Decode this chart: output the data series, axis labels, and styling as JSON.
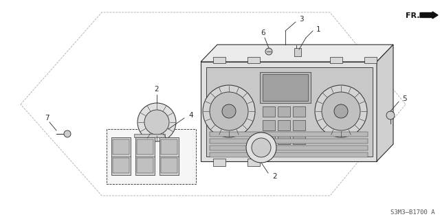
{
  "bg_color": "#ffffff",
  "line_color": "#2a2a2a",
  "dashed_line_color": "#aaaaaa",
  "footer_text": "S3M3–B1700 A",
  "fr_label": "FR.",
  "fig_width": 6.4,
  "fig_height": 3.19,
  "dpi": 100
}
